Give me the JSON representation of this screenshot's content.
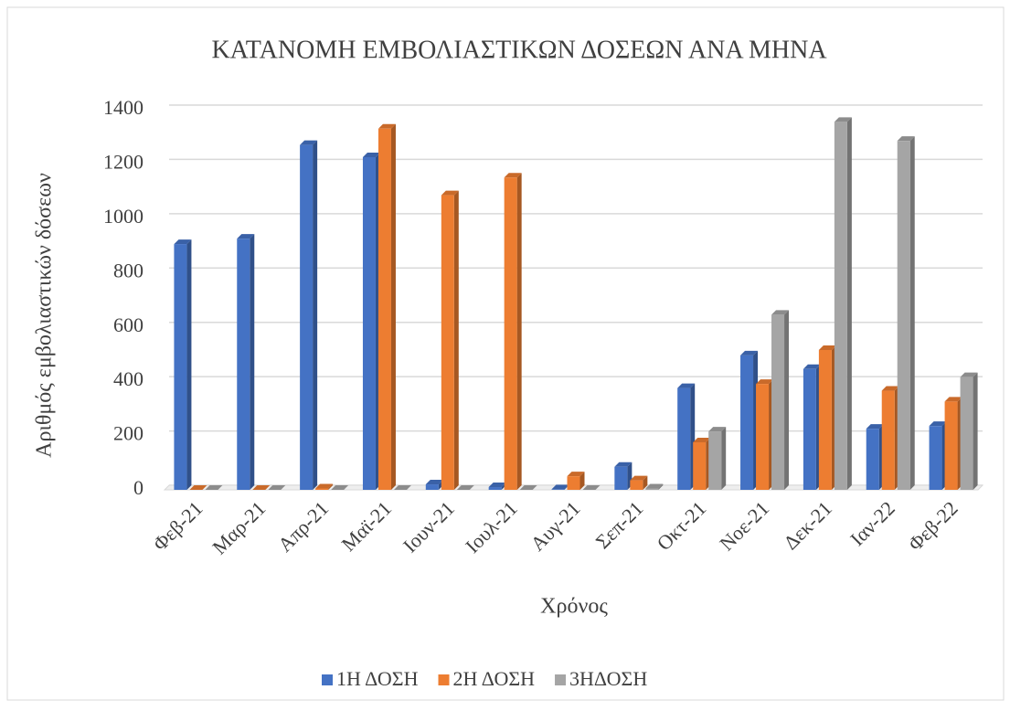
{
  "chart_data": {
    "type": "bar",
    "title": "ΚΑΤΑΝΟΜΗ ΕΜΒΟΛΙΑΣΤΙΚΩΝ ΔΟΣΕΩΝ ΑΝΑ ΜΗΝΑ",
    "x_label": "Χρόνος",
    "y_label": "Αριθμός  εμβολιαστικών δόσεων",
    "categories": [
      "Φεβ-21",
      "Μαρ-21",
      "Απρ-21",
      "Μαϊ-21",
      "Ιουν-21",
      "Ιουλ-21",
      "Αυγ-21",
      "Σεπ-21",
      "Οκτ-21",
      "Νοε-21",
      "Δεκ-21",
      "Ιαν-22",
      "Φεβ-22"
    ],
    "series": [
      {
        "name": "1Η ΔΟΣΗ",
        "color": "#4472c4",
        "values": [
          905,
          925,
          1270,
          1225,
          20,
          10,
          2,
          85,
          375,
          495,
          445,
          225,
          235
        ]
      },
      {
        "name": "2Η ΔΟΣΗ",
        "color": "#ed7d31",
        "values": [
          0,
          0,
          5,
          1330,
          1085,
          1150,
          50,
          35,
          175,
          390,
          515,
          365,
          325
        ]
      },
      {
        "name": "3ΗΔΟΣΗ",
        "color": "#a5a5a5",
        "values": [
          0,
          0,
          0,
          0,
          0,
          0,
          0,
          5,
          215,
          645,
          1355,
          1285,
          415
        ]
      }
    ],
    "ylim": [
      0,
      1400
    ],
    "yticks": [
      0,
      200,
      400,
      600,
      800,
      1000,
      1200,
      1400
    ],
    "grid": true,
    "legend": "bottom"
  }
}
